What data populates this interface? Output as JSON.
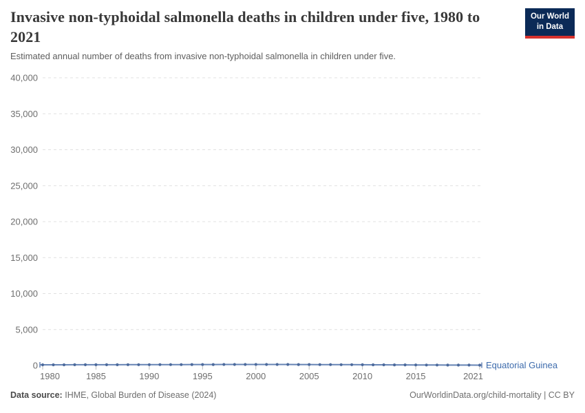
{
  "logo": {
    "line1": "Our World",
    "line2": "in Data"
  },
  "chart_data": {
    "type": "line",
    "title": "Invasive non-typhoidal salmonella deaths in children under five, 1980 to 2021",
    "subtitle": "Estimated annual number of deaths from invasive non-typhoidal salmonella in children under five.",
    "entity_label": "Equatorial Guinea",
    "xlabel": "",
    "ylabel": "",
    "xlim": [
      1980,
      2021
    ],
    "ylim": [
      0,
      40000
    ],
    "xticks": [
      1980,
      1985,
      1990,
      1995,
      2000,
      2005,
      2010,
      2015,
      2021
    ],
    "yticks": [
      0,
      5000,
      10000,
      15000,
      20000,
      25000,
      30000,
      35000,
      40000
    ],
    "ytick_labels": [
      "0",
      "5,000",
      "10,000",
      "15,000",
      "20,000",
      "25,000",
      "30,000",
      "35,000",
      "40,000"
    ],
    "grid": "horizontal-dashed",
    "legend": "line-end-label",
    "x": [
      1980,
      1981,
      1982,
      1983,
      1984,
      1985,
      1986,
      1987,
      1988,
      1989,
      1990,
      1991,
      1992,
      1993,
      1994,
      1995,
      1996,
      1997,
      1998,
      1999,
      2000,
      2001,
      2002,
      2003,
      2004,
      2005,
      2006,
      2007,
      2008,
      2009,
      2010,
      2011,
      2012,
      2013,
      2014,
      2015,
      2016,
      2017,
      2018,
      2019,
      2020,
      2021
    ],
    "series": [
      {
        "name": "Equatorial Guinea",
        "color": "#4c6a9c",
        "values": [
          95,
          97,
          99,
          101,
          103,
          105,
          107,
          110,
          112,
          115,
          118,
          121,
          124,
          127,
          130,
          133,
          136,
          139,
          141,
          143,
          145,
          144,
          142,
          139,
          136,
          132,
          128,
          123,
          118,
          112,
          106,
          100,
          94,
          88,
          82,
          76,
          71,
          66,
          61,
          57,
          53,
          50
        ]
      }
    ]
  },
  "footer": {
    "data_source_label": "Data source:",
    "data_source_value": "IHME, Global Burden of Disease (2024)",
    "attribution": "OurWorldinData.org/child-mortality | CC BY"
  },
  "colors": {
    "line": "#6583b4",
    "point": "#4c6a9c",
    "entity_label": "#3d6bac",
    "grid": "#e0e0e0",
    "axis_text": "#6e6e6e",
    "tick_mark": "#bbbbbb",
    "title": "#383838",
    "logo_bg": "#0b2a57",
    "logo_red": "#d7322d"
  }
}
